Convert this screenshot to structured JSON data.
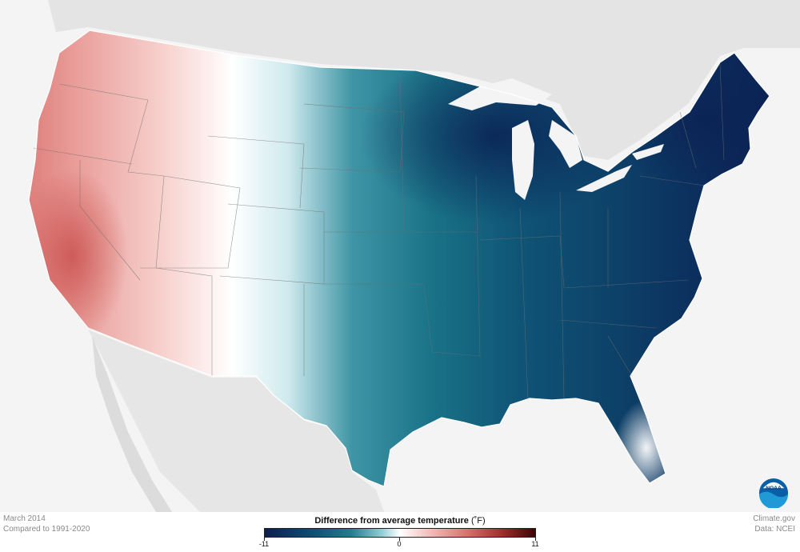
{
  "caption": {
    "date": "March 2014",
    "comparison": "Compared to 1991-2020"
  },
  "credits": {
    "site": "Climate.gov",
    "data_source": "Data: NCEI"
  },
  "legend": {
    "title": "Difference from average temperature",
    "unit": "(˚F)",
    "min_label": "-11",
    "mid_label": "0",
    "max_label": "11",
    "colors": [
      "#0b1f4e",
      "#1f7f8f",
      "#ffffff",
      "#d9706b",
      "#3b0505"
    ]
  },
  "map": {
    "region": "Contiguous United States",
    "pattern": "warm west, cold east"
  },
  "logo": {
    "text": "NOAA"
  }
}
